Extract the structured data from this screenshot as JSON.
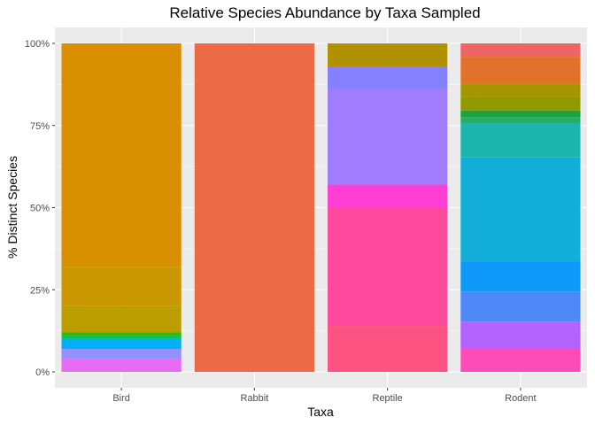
{
  "chart_data": {
    "type": "bar",
    "stacked": "percent",
    "title": "Relative Species Abundance by Taxa Sampled",
    "xlabel": "Taxa",
    "ylabel": "% Distinct Species",
    "categories": [
      "Bird",
      "Rabbit",
      "Reptile",
      "Rodent"
    ],
    "ylim": [
      0,
      1
    ],
    "y_ticks": [
      {
        "value": 0,
        "label": "0%"
      },
      {
        "value": 0.25,
        "label": "25%"
      },
      {
        "value": 0.5,
        "label": "50%"
      },
      {
        "value": 0.75,
        "label": "75%"
      },
      {
        "value": 1,
        "label": "100%"
      }
    ],
    "grid": true,
    "legend": "none",
    "panel_background": "#ebebeb",
    "bars": [
      {
        "category": "Bird",
        "segments": [
          {
            "value": 0.04,
            "color": "#e76bf3"
          },
          {
            "value": 0.03,
            "color": "#9590ff"
          },
          {
            "value": 0.03,
            "color": "#00b0f6"
          },
          {
            "value": 0.01,
            "color": "#00bf7d"
          },
          {
            "value": 0.01,
            "color": "#39b600"
          },
          {
            "value": 0.08,
            "color": "#bc9d00"
          },
          {
            "value": 0.12,
            "color": "#c99800"
          },
          {
            "value": 0.68,
            "color": "#d89000"
          }
        ]
      },
      {
        "category": "Rabbit",
        "segments": [
          {
            "value": 1.0,
            "color": "#ec6b47"
          }
        ]
      },
      {
        "category": "Reptile",
        "segments": [
          {
            "value": 0.14,
            "color": "#fc5382"
          },
          {
            "value": 0.36,
            "color": "#fd4a9c"
          },
          {
            "value": 0.07,
            "color": "#ff3fd3"
          },
          {
            "value": 0.29,
            "color": "#a07dff"
          },
          {
            "value": 0.07,
            "color": "#8580ff"
          },
          {
            "value": 0.07,
            "color": "#b09100"
          }
        ]
      },
      {
        "category": "Rodent",
        "segments": [
          {
            "value": 0.07,
            "color": "#fd4cb8"
          },
          {
            "value": 0.08,
            "color": "#b563ff"
          },
          {
            "value": 0.09,
            "color": "#4f89f8"
          },
          {
            "value": 0.09,
            "color": "#0f9af9"
          },
          {
            "value": 0.31,
            "color": "#13aed8"
          },
          {
            "value": 0.1,
            "color": "#1cb5ad"
          },
          {
            "value": 0.02,
            "color": "#25ad6a"
          },
          {
            "value": 0.02,
            "color": "#18a53b"
          },
          {
            "value": 0.04,
            "color": "#8f9a00"
          },
          {
            "value": 0.04,
            "color": "#a59600"
          },
          {
            "value": 0.08,
            "color": "#e2712b"
          },
          {
            "value": 0.04,
            "color": "#f06366"
          }
        ]
      }
    ]
  }
}
